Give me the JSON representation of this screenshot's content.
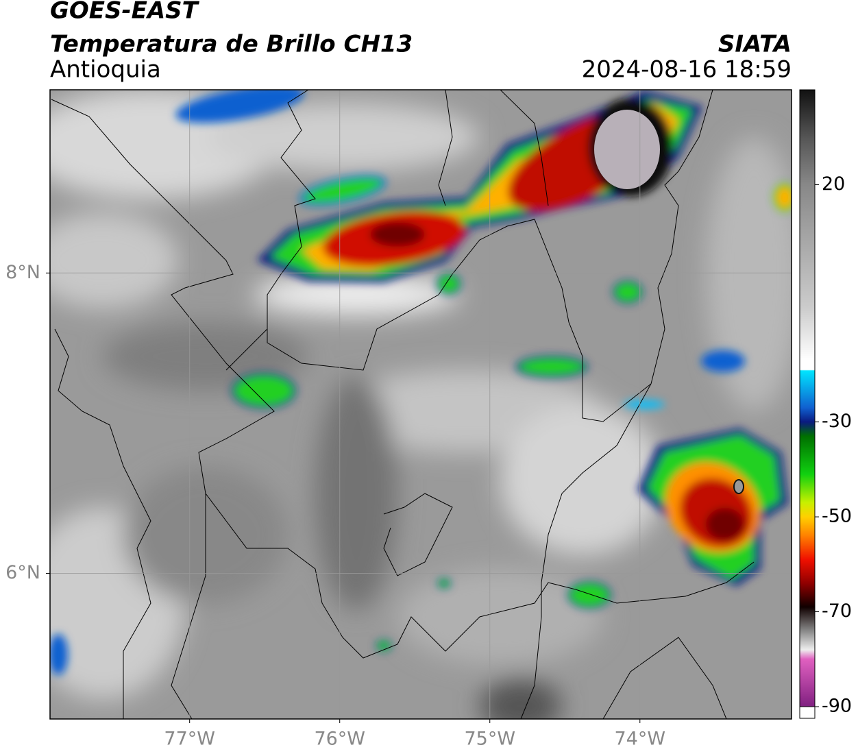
{
  "chart_data": {
    "type": "map",
    "title": "GOES-EAST",
    "subtitle": "Temperatura de Brillo CH13",
    "region": "Antioquia",
    "source": "SIATA",
    "timestamp": "2024-08-16 18:59",
    "xlim": [
      -77.93,
      -72.99
    ],
    "ylim": [
      5.03,
      9.22
    ],
    "xticks": [
      {
        "value": -77,
        "label": "77°W"
      },
      {
        "value": -76,
        "label": "76°W"
      },
      {
        "value": -75,
        "label": "75°W"
      },
      {
        "value": -74,
        "label": "74°W"
      }
    ],
    "yticks": [
      {
        "value": 6,
        "label": "6°N"
      },
      {
        "value": 8,
        "label": "8°N"
      }
    ],
    "grid": true,
    "colorbar": {
      "lim": [
        -90,
        40
      ],
      "ticks": [
        20,
        -30,
        -50,
        -70,
        -90
      ],
      "stops": [
        [
          40,
          "#111111"
        ],
        [
          30,
          "#555555"
        ],
        [
          20,
          "#888888"
        ],
        [
          -6,
          "#cccccc"
        ],
        [
          -17,
          "#ffffff"
        ],
        [
          -19,
          "#ffffff"
        ],
        [
          -19.2,
          "#00e5ff"
        ],
        [
          -27,
          "#1060d0"
        ],
        [
          -30,
          "#0a1a80"
        ],
        [
          -33,
          "#007000"
        ],
        [
          -41,
          "#10d010"
        ],
        [
          -47,
          "#c8f000"
        ],
        [
          -50,
          "#ffd000"
        ],
        [
          -54,
          "#ff8000"
        ],
        [
          -59,
          "#f01000"
        ],
        [
          -64,
          "#900000"
        ],
        [
          -69,
          "#100000"
        ],
        [
          -74,
          "#888888"
        ],
        [
          -78,
          "#eeeeee"
        ],
        [
          -80,
          "#e060c0"
        ],
        [
          -90,
          "#802080"
        ]
      ]
    }
  }
}
